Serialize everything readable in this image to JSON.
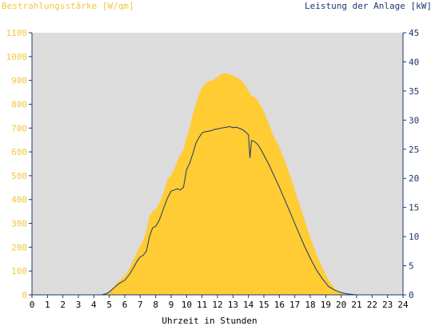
{
  "chart_data": {
    "type": "area",
    "title": "",
    "left_axis_title": "Bestrahlungsstärke [W/qm]",
    "right_axis_title": "Leistung der Anlage [kW]",
    "xlabel": "Uhrzeit in Stunden",
    "xlim": [
      0,
      24
    ],
    "x_ticks": [
      "0",
      "1",
      "2",
      "3",
      "4",
      "5",
      "6",
      "7",
      "8",
      "9",
      "10",
      "11",
      "12",
      "13",
      "14",
      "15",
      "16",
      "17",
      "18",
      "19",
      "20",
      "21",
      "22",
      "23",
      "24"
    ],
    "left_ylim": [
      0,
      1100
    ],
    "left_ticks": [
      "0",
      "100",
      "200",
      "300",
      "400",
      "500",
      "600",
      "700",
      "800",
      "900",
      "1000",
      "1100"
    ],
    "right_ylim": [
      0,
      45
    ],
    "right_ticks": [
      "0",
      "5",
      "10",
      "15",
      "20",
      "25",
      "30",
      "35",
      "40",
      "45"
    ],
    "grid": false,
    "colors": {
      "plot_bg": "#dcdcdc",
      "irradiance": "#ffcc33",
      "power": "#1c3770",
      "left_text": "#f2c640",
      "right_text": "#1c3770",
      "axis": "#1c3770"
    },
    "series": [
      {
        "name": "Bestrahlungsstärke [W/qm]",
        "axis": "left",
        "style": "area",
        "x": [
          0,
          4.5,
          4.8,
          5.0,
          5.3,
          5.6,
          6.0,
          6.3,
          6.6,
          6.8,
          7.0,
          7.2,
          7.4,
          7.6,
          7.8,
          8.0,
          8.2,
          8.4,
          8.6,
          8.8,
          9.0,
          9.2,
          9.4,
          9.6,
          9.8,
          10.0,
          10.2,
          10.4,
          10.6,
          10.8,
          11.0,
          11.2,
          11.4,
          11.6,
          11.8,
          12.0,
          12.2,
          12.4,
          12.6,
          12.8,
          13.0,
          13.2,
          13.4,
          13.6,
          13.8,
          14.0,
          14.2,
          14.4,
          14.6,
          14.8,
          15.0,
          15.3,
          15.6,
          16.0,
          16.4,
          16.8,
          17.2,
          17.6,
          18.0,
          18.4,
          18.8,
          19.2,
          19.6,
          20.0,
          20.3,
          20.6,
          21.0,
          24
        ],
        "values": [
          0,
          0,
          5,
          15,
          35,
          55,
          80,
          110,
          150,
          180,
          205,
          230,
          270,
          330,
          350,
          360,
          380,
          410,
          450,
          490,
          500,
          530,
          560,
          590,
          610,
          660,
          700,
          760,
          800,
          840,
          870,
          885,
          895,
          900,
          905,
          915,
          925,
          930,
          930,
          925,
          920,
          915,
          905,
          895,
          880,
          855,
          835,
          830,
          815,
          795,
          770,
          720,
          670,
          620,
          555,
          480,
          400,
          320,
          240,
          170,
          110,
          60,
          25,
          8,
          3,
          0,
          0,
          0
        ]
      },
      {
        "name": "Leistung der Anlage [kW]",
        "axis": "right",
        "style": "line",
        "x": [
          0,
          4.5,
          4.8,
          5.0,
          5.3,
          5.6,
          6.0,
          6.3,
          6.6,
          6.8,
          7.0,
          7.2,
          7.4,
          7.6,
          7.8,
          8.0,
          8.2,
          8.4,
          8.6,
          8.8,
          9.0,
          9.2,
          9.4,
          9.6,
          9.8,
          10.0,
          10.2,
          10.4,
          10.6,
          10.8,
          11.0,
          11.2,
          11.4,
          11.6,
          11.8,
          12.0,
          12.2,
          12.4,
          12.6,
          12.8,
          13.0,
          13.2,
          13.4,
          13.6,
          13.8,
          14.0,
          14.1,
          14.2,
          14.4,
          14.6,
          14.8,
          15.0,
          15.3,
          15.6,
          16.0,
          16.4,
          16.8,
          17.2,
          17.6,
          18.0,
          18.4,
          18.8,
          19.2,
          19.6,
          20.0,
          20.3,
          20.6,
          21.0,
          24
        ],
        "values": [
          0,
          0,
          0.2,
          0.5,
          1.2,
          1.9,
          2.5,
          3.5,
          4.8,
          5.8,
          6.5,
          6.8,
          7.5,
          10.0,
          11.5,
          11.8,
          12.6,
          14.0,
          15.5,
          16.8,
          17.8,
          18.0,
          18.2,
          18.0,
          18.5,
          21.5,
          22.6,
          24.2,
          26.0,
          27.0,
          27.8,
          28.0,
          28.1,
          28.2,
          28.4,
          28.5,
          28.6,
          28.7,
          28.8,
          28.9,
          28.7,
          28.8,
          28.6,
          28.4,
          28.0,
          27.5,
          23.5,
          26.5,
          26.3,
          25.8,
          25.0,
          24.0,
          22.5,
          20.8,
          18.5,
          16.0,
          13.5,
          11.0,
          8.5,
          6.3,
          4.3,
          2.7,
          1.4,
          0.8,
          0.4,
          0.2,
          0.1,
          0,
          0
        ]
      }
    ]
  }
}
